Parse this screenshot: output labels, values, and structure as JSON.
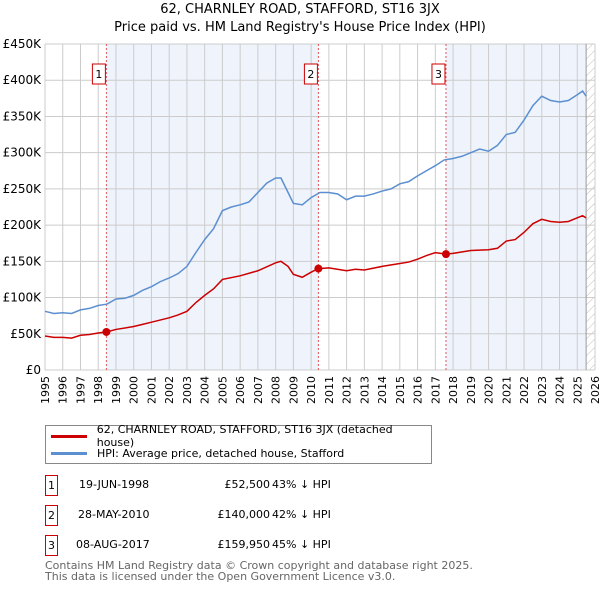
{
  "chart_data": {
    "type": "line",
    "title": "62, CHARNLEY ROAD, STAFFORD, ST16 3JX",
    "subtitle": "Price paid vs. HM Land Registry's House Price Index (HPI)",
    "xlim": [
      1995,
      2026
    ],
    "ylim": [
      0,
      450000
    ],
    "y_ticks": [
      0,
      50000,
      100000,
      150000,
      200000,
      250000,
      300000,
      350000,
      400000,
      450000
    ],
    "y_tick_labels": [
      "£0",
      "£50K",
      "£100K",
      "£150K",
      "£200K",
      "£250K",
      "£300K",
      "£350K",
      "£400K",
      "£450K"
    ],
    "x_ticks": [
      1995,
      1996,
      1997,
      1998,
      1999,
      2000,
      2001,
      2002,
      2003,
      2004,
      2005,
      2006,
      2007,
      2008,
      2009,
      2010,
      2011,
      2012,
      2013,
      2014,
      2015,
      2016,
      2017,
      2018,
      2019,
      2020,
      2021,
      2022,
      2023,
      2024,
      2025,
      2026
    ],
    "grid": true,
    "series": [
      {
        "name": "62, CHARNLEY ROAD, STAFFORD, ST16 3JX (detached house)",
        "color": "#cc0000",
        "x": [
          1995,
          1995.5,
          1996,
          1996.5,
          1997,
          1997.5,
          1998,
          1998.46,
          1999,
          2000,
          2000.5,
          2001,
          2002,
          2002.5,
          2003,
          2003.5,
          2004,
          2004.5,
          2005,
          2006,
          2007,
          2008,
          2008.3,
          2008.7,
          2009,
          2009.5,
          2010,
          2010.4,
          2011,
          2012,
          2012.5,
          2013,
          2014,
          2015,
          2015.5,
          2016,
          2016.5,
          2017,
          2017.6,
          2018,
          2019,
          2020,
          2020.5,
          2021,
          2021.5,
          2022,
          2022.5,
          2023,
          2023.5,
          2024,
          2024.5,
          2025,
          2025.3,
          2025.5
        ],
        "y": [
          47000,
          45000,
          45000,
          44000,
          48000,
          49000,
          51000,
          52500,
          56000,
          60000,
          63000,
          66000,
          72000,
          76000,
          81000,
          93000,
          103000,
          112000,
          125000,
          130000,
          137000,
          148000,
          150000,
          143000,
          132000,
          128000,
          135000,
          140000,
          141000,
          137000,
          139000,
          138000,
          143000,
          147000,
          149000,
          153000,
          158000,
          162000,
          159950,
          161000,
          165000,
          166000,
          168000,
          178000,
          180000,
          190000,
          202000,
          208000,
          205000,
          204000,
          205000,
          210000,
          213000,
          210000
        ]
      },
      {
        "name": "HPI: Average price, detached house, Stafford",
        "color": "#5b8fd0",
        "x": [
          1995,
          1995.5,
          1996,
          1996.5,
          1997,
          1997.5,
          1998,
          1998.5,
          1999,
          1999.5,
          2000,
          2000.5,
          2001,
          2001.5,
          2002,
          2002.5,
          2003,
          2003.5,
          2004,
          2004.5,
          2005,
          2005.5,
          2006,
          2006.5,
          2007,
          2007.5,
          2008,
          2008.3,
          2008.7,
          2009,
          2009.5,
          2010,
          2010.5,
          2011,
          2011.5,
          2012,
          2012.5,
          2013,
          2013.5,
          2014,
          2014.5,
          2015,
          2015.5,
          2016,
          2016.5,
          2017,
          2017.5,
          2018,
          2018.5,
          2019,
          2019.5,
          2020,
          2020.5,
          2021,
          2021.5,
          2022,
          2022.5,
          2023,
          2023.5,
          2024,
          2024.5,
          2025,
          2025.3,
          2025.5
        ],
        "y": [
          81000,
          78000,
          79000,
          78000,
          83000,
          85000,
          89000,
          91000,
          98000,
          99000,
          103000,
          110000,
          115000,
          122000,
          127000,
          133000,
          143000,
          162000,
          180000,
          195000,
          220000,
          225000,
          228000,
          232000,
          245000,
          258000,
          265000,
          265000,
          245000,
          230000,
          228000,
          238000,
          245000,
          245000,
          243000,
          235000,
          240000,
          240000,
          243000,
          247000,
          250000,
          257000,
          260000,
          268000,
          275000,
          282000,
          290000,
          292000,
          295000,
          300000,
          305000,
          302000,
          310000,
          325000,
          328000,
          345000,
          365000,
          378000,
          372000,
          370000,
          372000,
          380000,
          385000,
          378000
        ]
      }
    ],
    "sales": [
      {
        "num": "1",
        "x": 1998.46,
        "y": 52500,
        "date": "19-JUN-1998",
        "price": "£52,500",
        "hpi": "43% ↓ HPI"
      },
      {
        "num": "2",
        "x": 2010.41,
        "y": 140000,
        "date": "28-MAY-2010",
        "price": "£140,000",
        "hpi": "42% ↓ HPI"
      },
      {
        "num": "3",
        "x": 2017.6,
        "y": 159950,
        "date": "08-AUG-2017",
        "price": "£159,950",
        "hpi": "45% ↓ HPI"
      }
    ],
    "shaded_ranges": [
      [
        1998.46,
        2010.41
      ],
      [
        2017.6,
        2025.5
      ]
    ],
    "hatched_from": 2025.5
  },
  "footer": {
    "line1": "Contains HM Land Registry data © Crown copyright and database right 2025.",
    "line2": "This data is licensed under the Open Government Licence v3.0."
  }
}
